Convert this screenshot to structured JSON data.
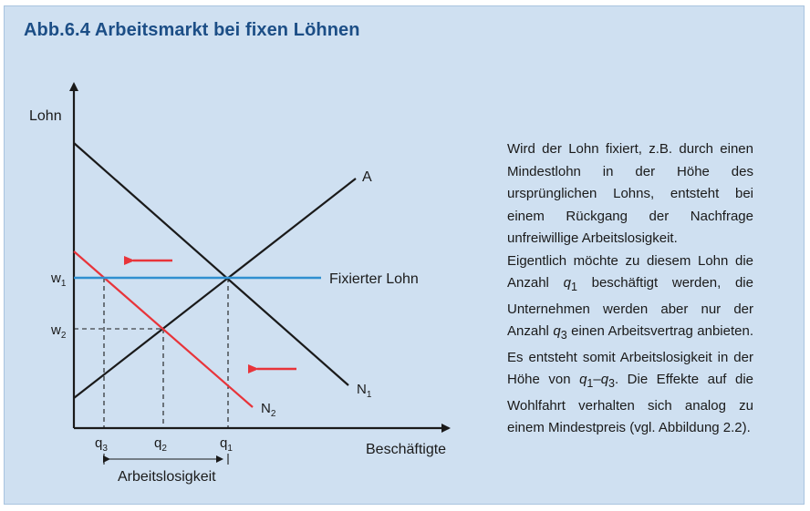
{
  "title": "Abb.6.4  Arbeitsmarkt bei fixen Löhnen",
  "diagram": {
    "y_axis_label": "Lohn",
    "x_axis_label": "Beschäftigte",
    "y_ticks": [
      {
        "base": "w",
        "sub": "1"
      },
      {
        "base": "w",
        "sub": "2"
      }
    ],
    "x_ticks": [
      {
        "base": "q",
        "sub": "3"
      },
      {
        "base": "q",
        "sub": "2"
      },
      {
        "base": "q",
        "sub": "1"
      }
    ],
    "curve_labels": {
      "supply": "A",
      "demand_1": {
        "base": "N",
        "sub": "1"
      },
      "demand_2": {
        "base": "N",
        "sub": "2"
      },
      "fixed_wage": "Fixierter Lohn"
    },
    "bracket_label": "Arbeitslosigkeit",
    "colors": {
      "demand_2": "#e8343a",
      "fixed_wage": "#2f8fd0",
      "arrows": "#e8343a",
      "title": "#1c4e86",
      "background": "#cfe0f1"
    }
  },
  "description": {
    "paragraph1": "Wird der Lohn fixiert, z.B. durch einen Mindestlohn in der Höhe des ursprünglichen Lohns, entsteht bei einem Rückgang der Nachfrage unfreiwillige Arbeitslosigkeit.",
    "p2_part1": "Eigentlich möchte zu diesem Lohn die Anzahl ",
    "p2_q1_a": "q",
    "p2_q1_a_sub": "1",
    "p2_part2": " beschäftigt werden, die Unternehmen werden aber nur der Anzahl ",
    "p2_q3_a": "q",
    "p2_q3_a_sub": "3",
    "p2_part3": " einen Arbeitsvertrag anbieten. Es entsteht somit Arbeitslosigkeit in der Höhe von ",
    "p2_q1_b": "q",
    "p2_q1_b_sub": "1",
    "p2_dash": "–",
    "p2_q3_b": "q",
    "p2_q3_b_sub": "3",
    "p2_part4": ". Die Effekte auf die Wohlfahrt verhalten sich analog zu einem Mindestpreis (vgl. Abbildung 2.2)."
  }
}
